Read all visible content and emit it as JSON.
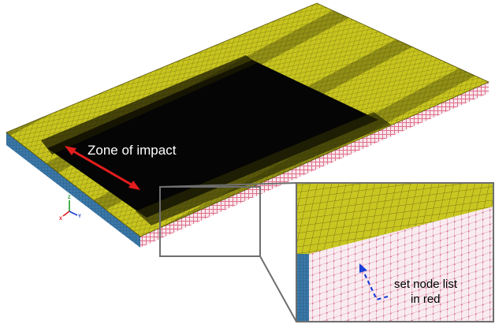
{
  "annotations": {
    "zone_label": "Zone of impact",
    "node_list_line1": "set node list",
    "node_list_line2": "in red"
  },
  "triad": {
    "x_label": "X",
    "y_label": "Y",
    "z_label": "Z"
  },
  "colors": {
    "mesh_face": "#c7c41f",
    "mesh_face_dark": "#9d9a14",
    "impact_zone": "#050505",
    "side_blue": "#3b78a8",
    "node_red": "#e0708a",
    "side_light": "#f3dce4",
    "zone_arrow": "#e31d1d",
    "node_arrow": "#1a3fd6",
    "zoom_frame": "#6e6e6e"
  }
}
